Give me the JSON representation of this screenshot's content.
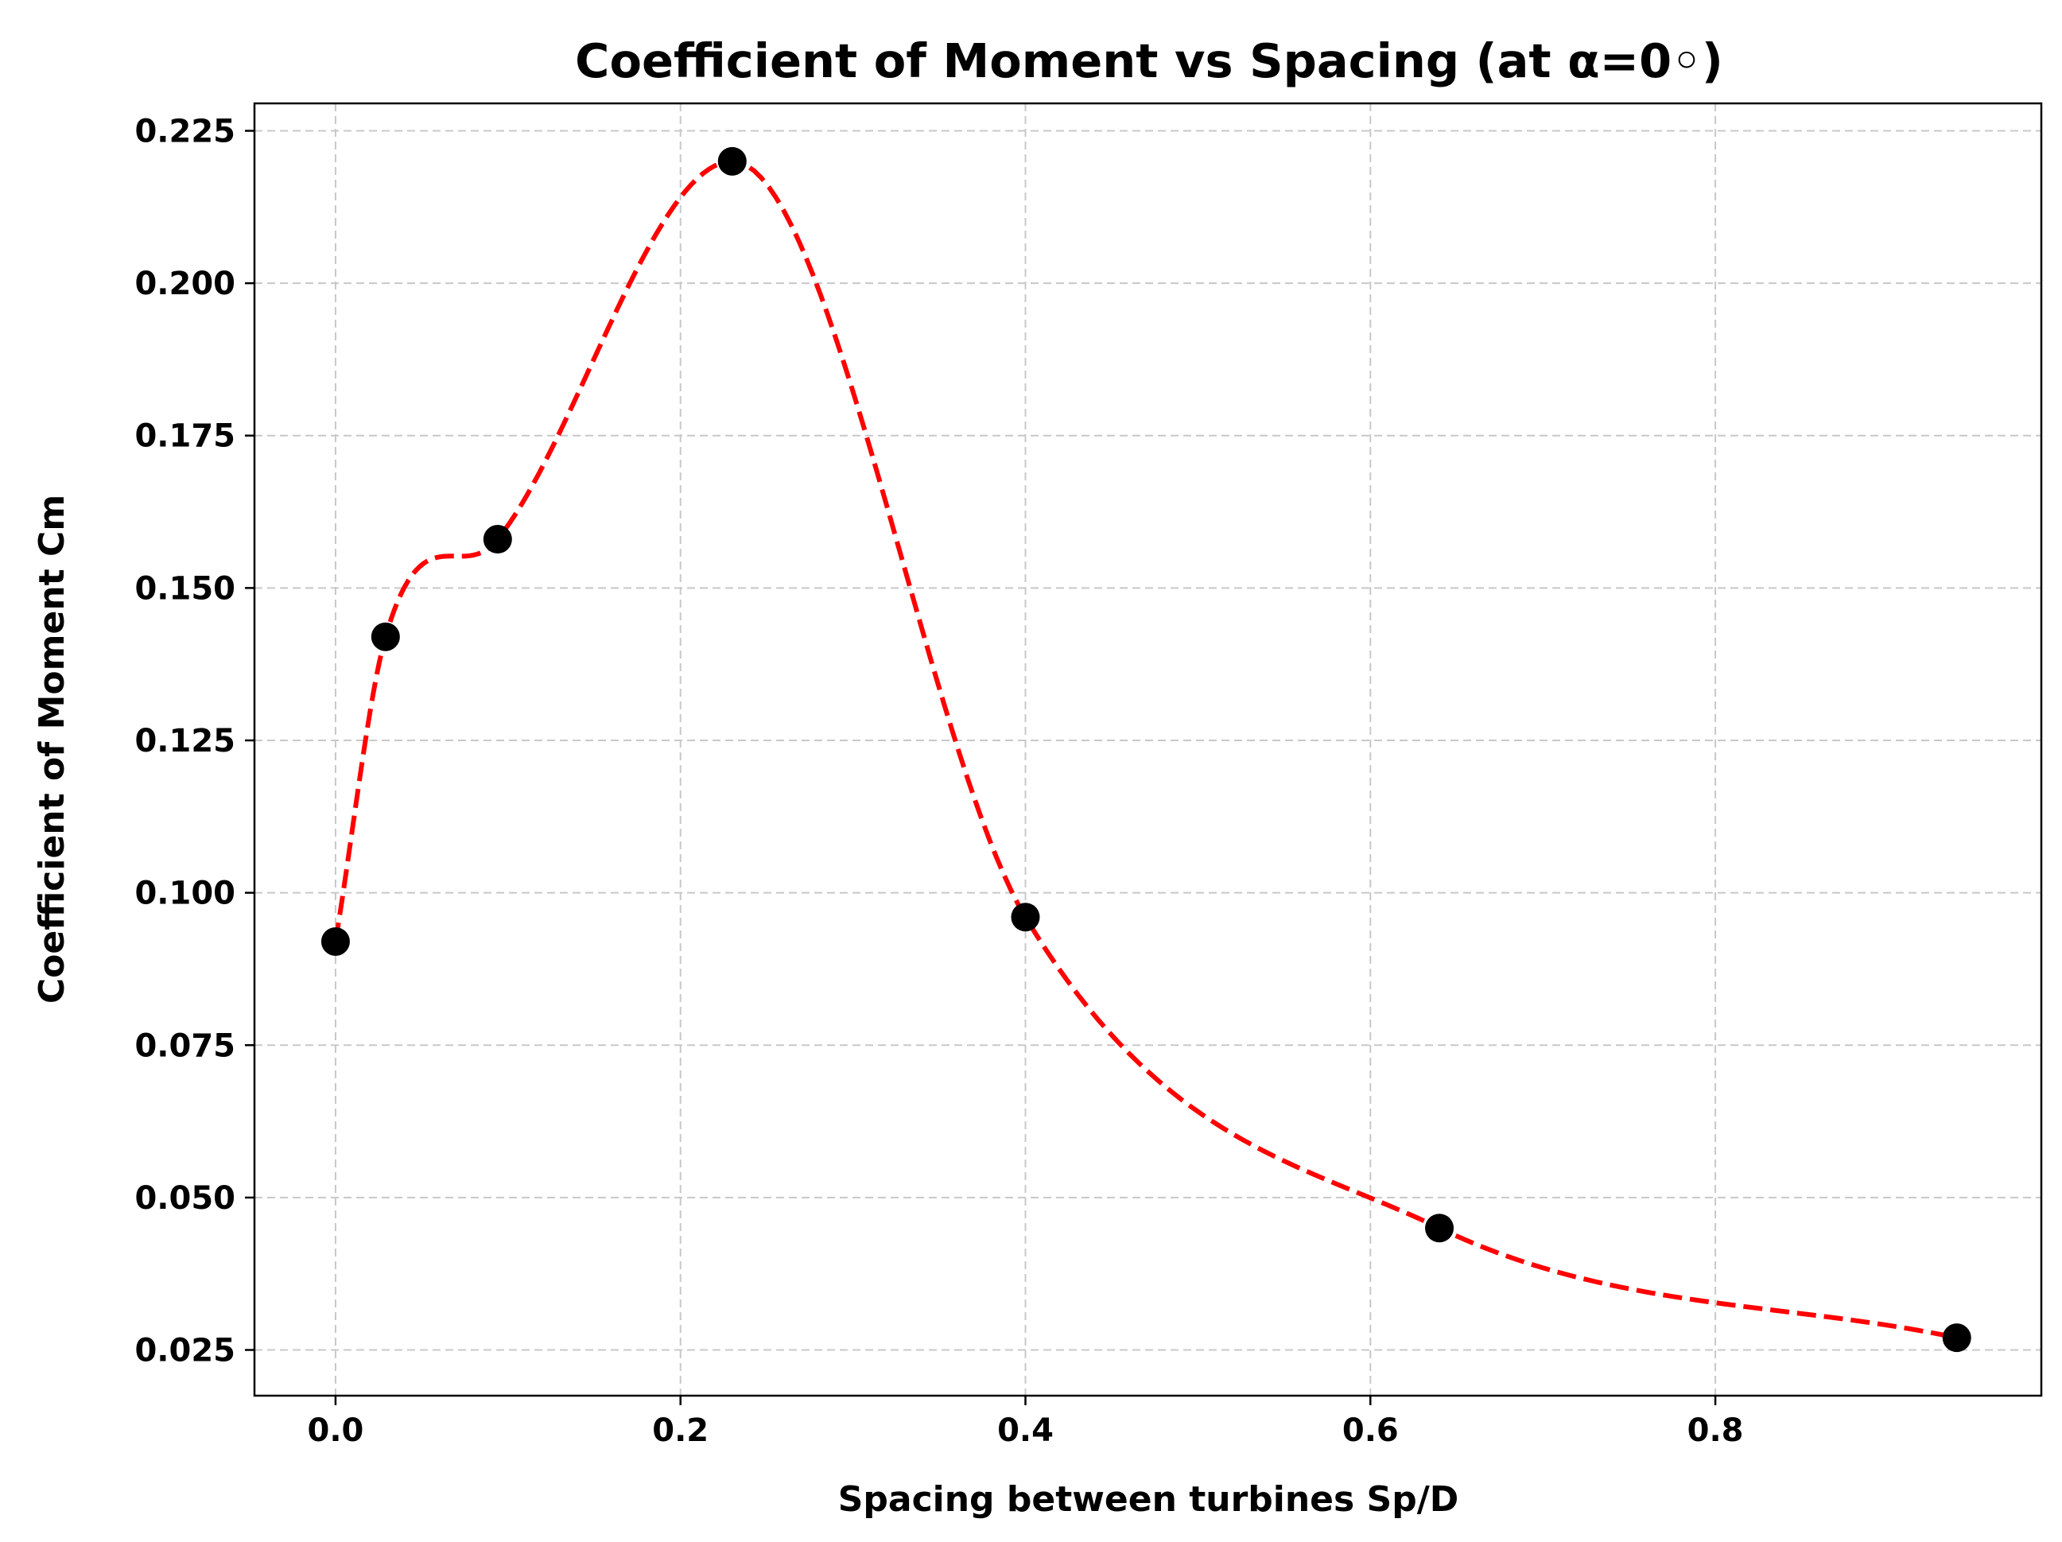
{
  "chart_data": {
    "type": "line",
    "title": "Coefficient of Moment vs Spacing (at α=0◦)",
    "xlabel": "Spacing between turbines Sp/D",
    "ylabel": "Coefficient of Moment Cm",
    "xlim": [
      -0.047,
      0.989
    ],
    "ylim": [
      0.0175,
      0.2295
    ],
    "xticks": [
      0.0,
      0.2,
      0.4,
      0.6,
      0.8
    ],
    "xtick_labels": [
      "0.0",
      "0.2",
      "0.4",
      "0.6",
      "0.8"
    ],
    "yticks": [
      0.025,
      0.05,
      0.075,
      0.1,
      0.125,
      0.15,
      0.175,
      0.2,
      0.225
    ],
    "ytick_labels": [
      "0.025",
      "0.050",
      "0.075",
      "0.100",
      "0.125",
      "0.150",
      "0.175",
      "0.200",
      "0.225"
    ],
    "grid": true,
    "series": [
      {
        "x": [
          0.0,
          0.029,
          0.094,
          0.23,
          0.4,
          0.64,
          0.94
        ],
        "y": [
          0.092,
          0.142,
          0.158,
          0.22,
          0.096,
          0.045,
          0.027
        ],
        "marker_color": "#000000",
        "line_color": "#ff0000",
        "line_style": "dashed",
        "smoothed": true
      }
    ]
  }
}
